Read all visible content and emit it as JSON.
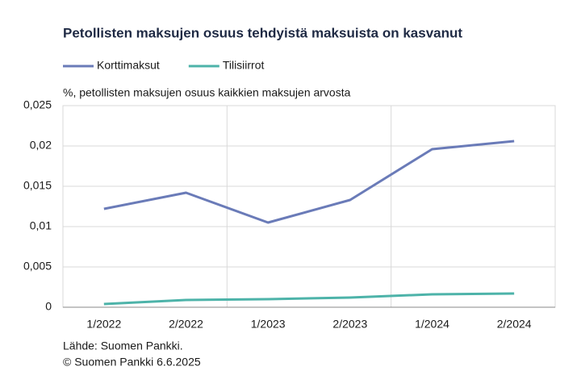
{
  "chart_data": {
    "type": "line",
    "title": "Petollisten maksujen osuus tehdyistä maksuista on kasvanut",
    "y_axis_label": "%, petollisten maksujen osuus kaikkien maksujen arvosta",
    "categories": [
      "1/2022",
      "2/2022",
      "1/2023",
      "2/2023",
      "1/2024",
      "2/2024"
    ],
    "series": [
      {
        "name": "Korttimaksut",
        "color": "#6a7bb8",
        "values": [
          0.0122,
          0.0142,
          0.0105,
          0.0133,
          0.0196,
          0.0206
        ]
      },
      {
        "name": "Tilisiirrot",
        "color": "#4db3a9",
        "values": [
          0.0004,
          0.0009,
          0.001,
          0.0012,
          0.0016,
          0.0017
        ]
      }
    ],
    "ylim": [
      0,
      0.025
    ],
    "yticks": [
      0,
      {
        "value": 0.005,
        "label": "0,005"
      },
      {
        "value": 0.01,
        "label": "0,01"
      },
      {
        "value": 0.015,
        "label": "0,015"
      },
      {
        "value": 0.02,
        "label": "0,02"
      },
      {
        "value": 0.025,
        "label": "0,025"
      }
    ],
    "grid": true,
    "notes": [
      "Lähde: Suomen Pankki.",
      "© Suomen Pankki 6.6.2025"
    ]
  }
}
